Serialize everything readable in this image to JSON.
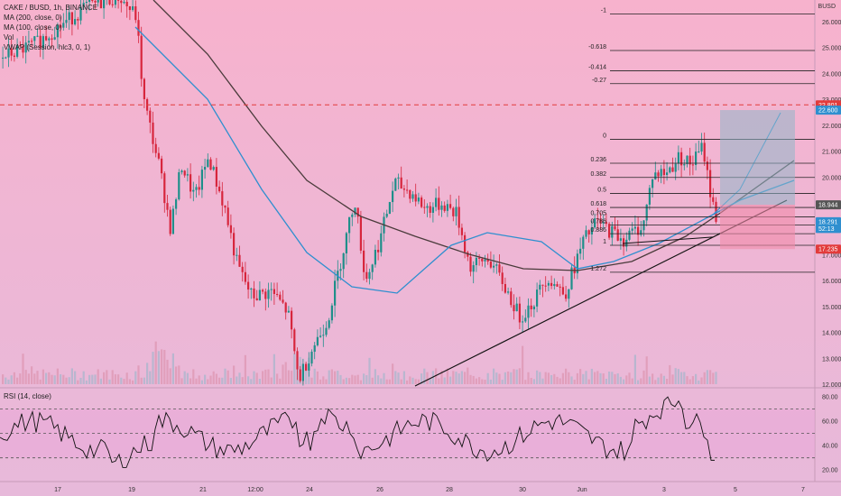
{
  "legend": {
    "symbol": "CAKE / BUSD, 1h, BINANCE",
    "ma200": "MA (200, close, 0)",
    "ma100": "MA (100, close, 0)",
    "vol": "Vol",
    "vwap": "VWAP (Session, hlc3, 0, 1)",
    "rsi": "RSI (14, close)"
  },
  "currency": "BUSD",
  "colors": {
    "up": "#1f8f8a",
    "down": "#d7263d",
    "ma200": "#4a3b3b",
    "ma100": "#2f8fcf",
    "vwap": "#6aa8d8",
    "trendline": "#111111",
    "resistance": "#e23b3b",
    "fib": "#222222",
    "rsi": "#111111",
    "rsi_band": "#e9a9d9"
  },
  "chart_data": {
    "type": "candlestick",
    "price_axis": {
      "ticks": [
        "26.000",
        "25.000",
        "24.000",
        "23.000",
        "22.000",
        "21.000",
        "20.000",
        "19.000",
        "18.000",
        "17.000",
        "16.000",
        "15.000",
        "14.000",
        "13.000",
        "12.000"
      ],
      "values": [
        26,
        25,
        24,
        23,
        22,
        21,
        20,
        19,
        18,
        17,
        16,
        15,
        14,
        13,
        12
      ],
      "ylim": [
        11.95,
        26.85
      ]
    },
    "time_axis": {
      "labels": [
        "17",
        "19",
        "21",
        "12:00",
        "24",
        "26",
        "28",
        "30",
        "Jun",
        "3",
        "5",
        "7"
      ]
    },
    "price_tags": [
      {
        "label": "22.801",
        "value": 22.801,
        "color": "#e23b3b"
      },
      {
        "label": "22.600",
        "value": 22.6,
        "color": "#2f8fcf"
      },
      {
        "label": "18.944",
        "value": 18.944,
        "color": "#555555"
      },
      {
        "label": "18.291",
        "value": 18.291,
        "color": "#2f8fcf"
      },
      {
        "label": "52:13",
        "value": 18.03,
        "color": "#2f8fcf"
      },
      {
        "label": "17.235",
        "value": 17.235,
        "color": "#e23b3b"
      }
    ],
    "fib_levels": [
      {
        "label": "-1",
        "value": 26.31
      },
      {
        "label": "-0.618",
        "value": 24.9
      },
      {
        "label": "-0.414",
        "value": 24.12
      },
      {
        "label": "-0.27",
        "value": 23.62
      },
      {
        "label": "0",
        "value": 21.47
      },
      {
        "label": "0.236",
        "value": 20.55
      },
      {
        "label": "0.382",
        "value": 20.0
      },
      {
        "label": "0.5",
        "value": 19.38
      },
      {
        "label": "0.618",
        "value": 18.84
      },
      {
        "label": "0.705",
        "value": 18.48
      },
      {
        "label": "0.786",
        "value": 18.16
      },
      {
        "label": "0.886",
        "value": 17.83
      },
      {
        "label": "1",
        "value": 17.38
      },
      {
        "label": "1.272",
        "value": 16.34
      }
    ],
    "resistance_level": 22.801,
    "rsi_axis": {
      "ticks": [
        "80.00",
        "60.00",
        "40.00",
        "20.00"
      ],
      "values": [
        80,
        60,
        40,
        20
      ],
      "ylim": [
        12,
        86
      ],
      "bands": [
        70,
        50,
        30
      ]
    }
  }
}
